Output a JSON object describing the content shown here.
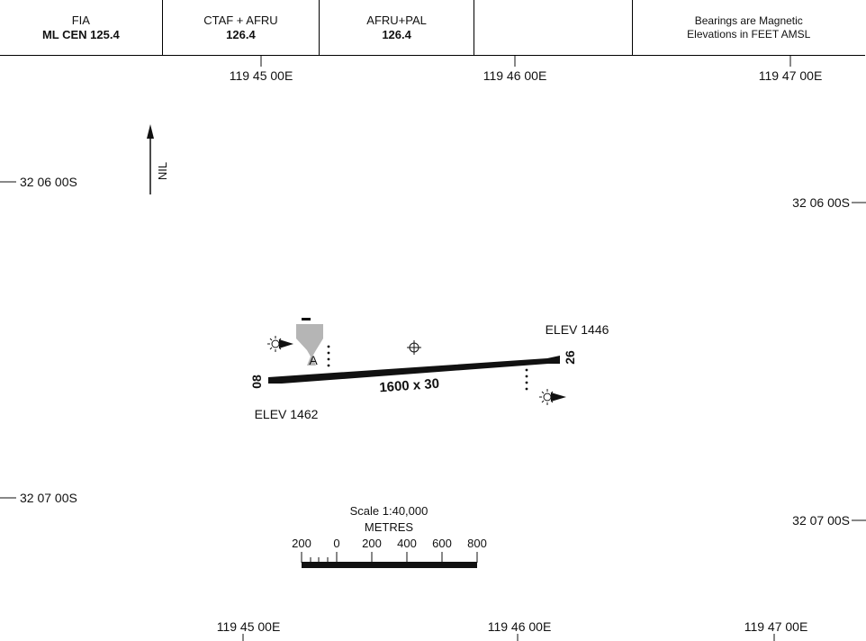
{
  "header": {
    "cells": [
      {
        "line1": "FIA",
        "line2": "ML CEN 125.4"
      },
      {
        "line1": "CTAF + AFRU",
        "line2": "126.4"
      },
      {
        "line1": "AFRU+PAL",
        "line2": "126.4"
      },
      {
        "line1": "",
        "line2": ""
      },
      {
        "line1": "Bearings are Magnetic",
        "line2": "Elevations in FEET AMSL"
      }
    ]
  },
  "grid": {
    "lon_top": [
      "119 45 00E",
      "119 46 00E",
      "119 47 00E"
    ],
    "lon_bottom": [
      "119 45 00E",
      "119 46 00E",
      "119 47 00E"
    ],
    "lat_left": [
      "32 06 00S",
      "32 07 00S"
    ],
    "lat_right": [
      "32 06 00S",
      "32 07 00S"
    ]
  },
  "north_arrow": {
    "label": "NIL"
  },
  "runway": {
    "end_west": "08",
    "end_east": "26",
    "dimensions": "1600 x 30",
    "elev_west": "ELEV 1462",
    "elev_east": "ELEV 1446",
    "windsock_label": "A"
  },
  "scale": {
    "title": "Scale 1:40,000",
    "units": "METRES",
    "ticks": [
      "200",
      "0",
      "200",
      "400",
      "600",
      "800"
    ]
  },
  "colors": {
    "ink": "#111111",
    "windsock": "#b5b5b5"
  }
}
